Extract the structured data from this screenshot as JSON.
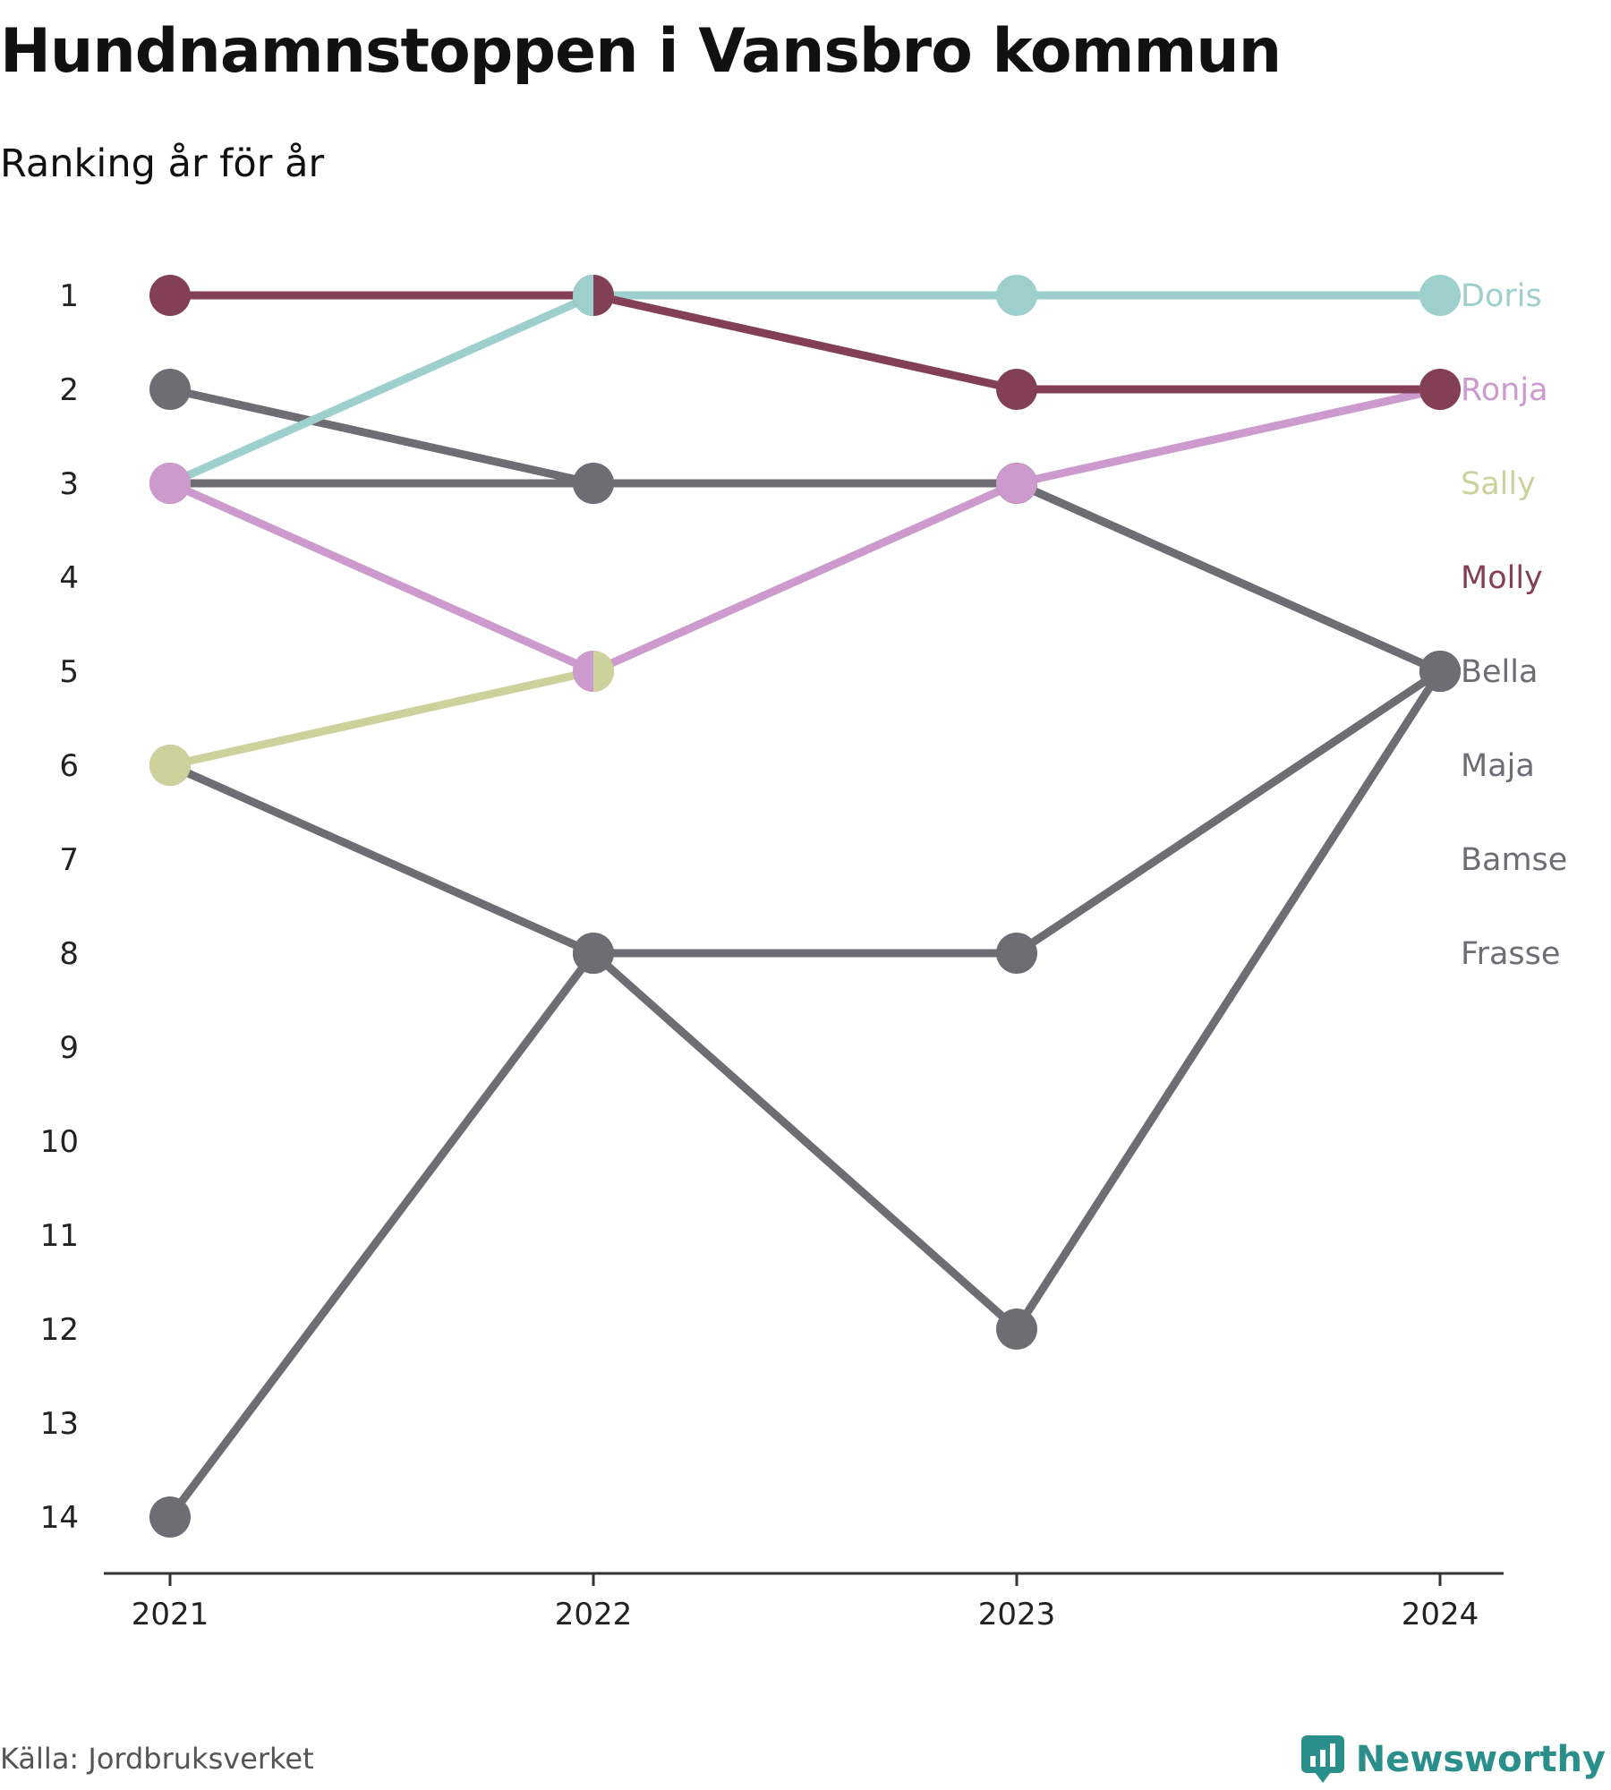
{
  "title": "Hundnamnstoppen i Vansbro kommun",
  "subtitle": "Ranking år för år",
  "source": "Källa: Jordbruksverket",
  "brand": "Newsworthy",
  "colors": {
    "brand": "#2a8f8a",
    "axis": "#333333"
  },
  "chart_data": {
    "type": "line",
    "subtype": "bump",
    "x": [
      "2021",
      "2022",
      "2023",
      "2024"
    ],
    "y_ticks": [
      "1",
      "2",
      "3",
      "4",
      "5",
      "6",
      "7",
      "8",
      "9",
      "10",
      "11",
      "12",
      "13",
      "14"
    ],
    "ylim": [
      1,
      14
    ],
    "y_inverted": true,
    "grid": false,
    "legend": "end-labels-right",
    "series": [
      {
        "name": "Doris",
        "color": "#9dcfcd",
        "ranks": [
          3,
          1,
          1,
          1
        ],
        "label_rank": 1
      },
      {
        "name": "Ronja",
        "color": "#cc9acd",
        "ranks": [
          3,
          5,
          3,
          2
        ],
        "label_rank": 2
      },
      {
        "name": "Sally",
        "color": "#cdd19b",
        "ranks": [
          6,
          5,
          null,
          null
        ],
        "label_rank": 3
      },
      {
        "name": "Molly",
        "color": "#823f56",
        "ranks": [
          1,
          1,
          2,
          2
        ],
        "label_rank": 4
      },
      {
        "name": "Bella",
        "color": "#6e6d73",
        "ranks": [
          2,
          3,
          3,
          5
        ],
        "label_rank": 5
      },
      {
        "name": "Maja",
        "color": "#6e6d73",
        "ranks": [
          3,
          3,
          3,
          5
        ],
        "label_rank": 6
      },
      {
        "name": "Bamse",
        "color": "#6e6d73",
        "ranks": [
          6,
          8,
          12,
          5
        ],
        "label_rank": 7
      },
      {
        "name": "Frasse",
        "color": "#6e6d73",
        "ranks": [
          14,
          8,
          8,
          5
        ],
        "label_rank": 8
      }
    ]
  }
}
